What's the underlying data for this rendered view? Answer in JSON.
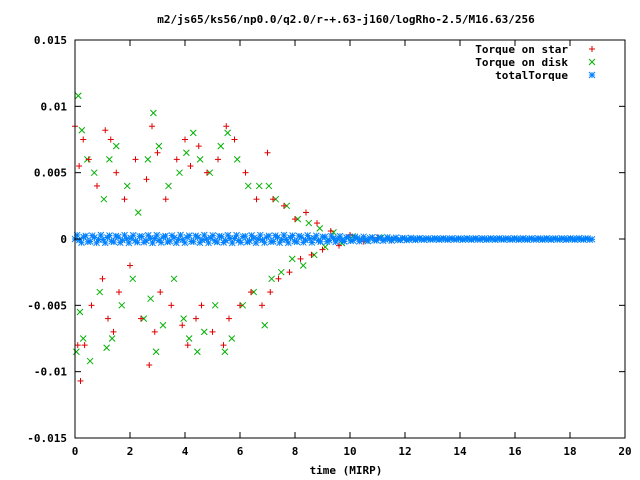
{
  "chart_data": {
    "type": "scatter",
    "title": "m2/js65/ks56/np0.0/q2.0/r-+.63-j160/logRho-2.5/M16.63/256",
    "xlabel": "time (MIRP)",
    "ylabel": "",
    "xlim": [
      0,
      20
    ],
    "ylim": [
      -0.015,
      0.015
    ],
    "x_ticks": [
      0,
      2,
      4,
      6,
      8,
      10,
      12,
      14,
      16,
      18,
      20
    ],
    "x_tick_labels": [
      "0",
      "2",
      "4",
      "6",
      "8",
      "10",
      "12",
      "14",
      "16",
      "18",
      "20"
    ],
    "y_ticks": [
      -0.015,
      -0.01,
      -0.005,
      0,
      0.005,
      0.01,
      0.015
    ],
    "y_tick_labels": [
      "-0.015",
      "-0.01",
      "-0.005",
      "0",
      "0.005",
      "0.01",
      "0.015"
    ],
    "grid": false,
    "legend_position": "top-right",
    "series": [
      {
        "name": "Torque on star",
        "marker": "+",
        "color": "#e00000",
        "x": [
          0.0,
          0.1,
          0.15,
          0.2,
          0.3,
          0.35,
          0.5,
          0.6,
          0.8,
          1.0,
          1.1,
          1.2,
          1.3,
          1.4,
          1.5,
          1.6,
          1.8,
          2.0,
          2.2,
          2.4,
          2.6,
          2.7,
          2.8,
          2.9,
          3.0,
          3.1,
          3.3,
          3.5,
          3.7,
          3.9,
          4.0,
          4.1,
          4.2,
          4.4,
          4.5,
          4.6,
          4.8,
          5.0,
          5.2,
          5.4,
          5.5,
          5.6,
          5.8,
          6.0,
          6.2,
          6.4,
          6.6,
          6.8,
          7.0,
          7.1,
          7.2,
          7.4,
          7.6,
          7.8,
          8.0,
          8.2,
          8.4,
          8.6,
          8.8,
          9.0,
          9.3,
          9.6,
          10.0,
          10.5,
          11.0,
          11.5
        ],
        "y": [
          0.0085,
          -0.008,
          0.0055,
          -0.0107,
          0.0075,
          -0.008,
          0.006,
          -0.005,
          0.004,
          -0.003,
          0.0082,
          -0.006,
          0.0075,
          -0.007,
          0.005,
          -0.004,
          0.003,
          -0.002,
          0.006,
          -0.006,
          0.0045,
          -0.0095,
          0.0085,
          -0.007,
          0.0065,
          -0.004,
          0.003,
          -0.005,
          0.006,
          -0.0065,
          0.0075,
          -0.008,
          0.0055,
          -0.006,
          0.007,
          -0.005,
          0.005,
          -0.007,
          0.006,
          -0.008,
          0.0085,
          -0.006,
          0.0075,
          -0.005,
          0.005,
          -0.004,
          0.003,
          -0.005,
          0.0065,
          -0.004,
          0.003,
          -0.003,
          0.0025,
          -0.0025,
          0.0015,
          -0.0015,
          0.002,
          -0.0012,
          0.0012,
          -0.0008,
          0.0006,
          -0.0005,
          0.0003,
          -0.0002,
          0.0001,
          -0.0001
        ]
      },
      {
        "name": "Torque on disk",
        "marker": "x",
        "color": "#00b000",
        "x": [
          0.05,
          0.12,
          0.18,
          0.25,
          0.3,
          0.45,
          0.55,
          0.7,
          0.9,
          1.05,
          1.15,
          1.25,
          1.35,
          1.5,
          1.7,
          1.9,
          2.1,
          2.3,
          2.5,
          2.65,
          2.75,
          2.85,
          2.95,
          3.05,
          3.2,
          3.4,
          3.6,
          3.8,
          3.95,
          4.05,
          4.15,
          4.3,
          4.45,
          4.55,
          4.7,
          4.9,
          5.1,
          5.3,
          5.45,
          5.55,
          5.7,
          5.9,
          6.1,
          6.3,
          6.5,
          6.7,
          6.9,
          7.05,
          7.15,
          7.3,
          7.5,
          7.7,
          7.9,
          8.1,
          8.3,
          8.5,
          8.7,
          8.9,
          9.1,
          9.4,
          9.7,
          10.1,
          10.6,
          11.1,
          11.6
        ],
        "y": [
          -0.0085,
          0.0108,
          -0.0055,
          0.0082,
          -0.0075,
          0.006,
          -0.0092,
          0.005,
          -0.004,
          0.003,
          -0.0082,
          0.006,
          -0.0075,
          0.007,
          -0.005,
          0.004,
          -0.003,
          0.002,
          -0.006,
          0.006,
          -0.0045,
          0.0095,
          -0.0085,
          0.007,
          -0.0065,
          0.004,
          -0.003,
          0.005,
          -0.006,
          0.0065,
          -0.0075,
          0.008,
          -0.0085,
          0.006,
          -0.007,
          0.005,
          -0.005,
          0.007,
          -0.0085,
          0.008,
          -0.0075,
          0.006,
          -0.005,
          0.004,
          -0.004,
          0.004,
          -0.0065,
          0.004,
          -0.003,
          0.003,
          -0.0025,
          0.0025,
          -0.0015,
          0.0015,
          -0.002,
          0.0012,
          -0.0012,
          0.0008,
          -0.0006,
          0.0005,
          -0.0003,
          0.0002,
          -0.0001,
          0.0001,
          0.0
        ]
      },
      {
        "name": "totalTorque",
        "marker": "*",
        "color": "#0080ff",
        "x_range": [
          0,
          18.8
        ],
        "y_envelope": [
          -0.0003,
          0.0003
        ]
      }
    ]
  }
}
